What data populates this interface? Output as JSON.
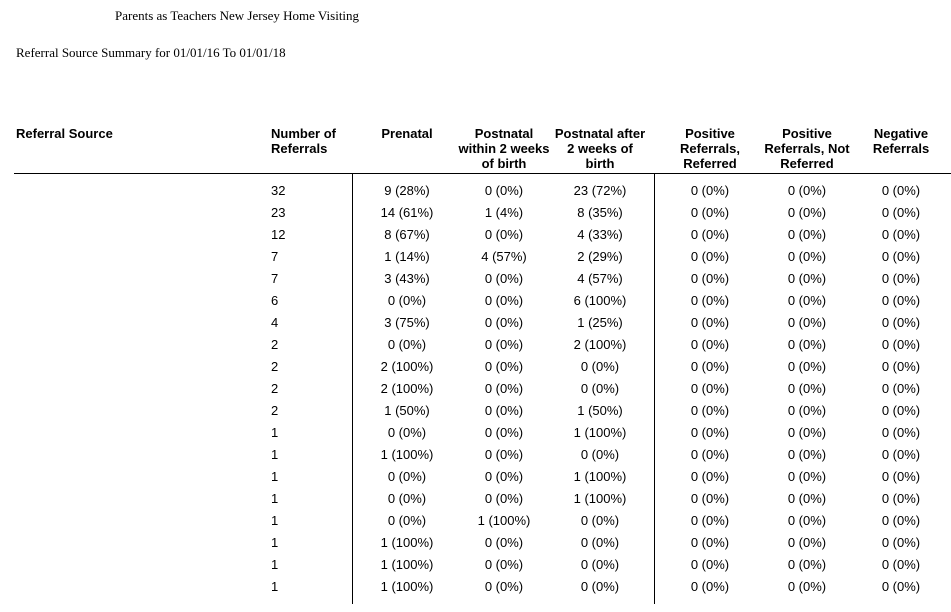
{
  "report": {
    "organization": "Parents as Teachers New Jersey Home Visiting",
    "title": "Referral Source Summary for 01/01/16 To 01/01/18"
  },
  "table": {
    "headers": {
      "source": "Referral Source",
      "count": "Number of Referrals",
      "prenatal": "Prenatal",
      "postnatal_within": "Postnatal within 2 weeks of birth",
      "postnatal_after": "Postnatal after 2 weeks of birth",
      "positive_referred": "Positive Referrals, Referred",
      "positive_not_referred": "Positive Referrals, Not Referred",
      "negative": "Negative Referrals"
    },
    "rows": [
      {
        "source": "",
        "count": "32",
        "prenatal": "9 (28%)",
        "postnatal_within": "0 (0%)",
        "postnatal_after": "23 (72%)",
        "positive_referred": "0 (0%)",
        "positive_not_referred": "0 (0%)",
        "negative": "0 (0%)"
      },
      {
        "source": "",
        "count": "23",
        "prenatal": "14 (61%)",
        "postnatal_within": "1 (4%)",
        "postnatal_after": "8 (35%)",
        "positive_referred": "0 (0%)",
        "positive_not_referred": "0 (0%)",
        "negative": "0 (0%)"
      },
      {
        "source": "",
        "count": "12",
        "prenatal": "8 (67%)",
        "postnatal_within": "0 (0%)",
        "postnatal_after": "4 (33%)",
        "positive_referred": "0 (0%)",
        "positive_not_referred": "0 (0%)",
        "negative": "0 (0%)"
      },
      {
        "source": "",
        "count": "7",
        "prenatal": "1 (14%)",
        "postnatal_within": "4 (57%)",
        "postnatal_after": "2 (29%)",
        "positive_referred": "0 (0%)",
        "positive_not_referred": "0 (0%)",
        "negative": "0 (0%)"
      },
      {
        "source": "",
        "count": "7",
        "prenatal": "3 (43%)",
        "postnatal_within": "0 (0%)",
        "postnatal_after": "4 (57%)",
        "positive_referred": "0 (0%)",
        "positive_not_referred": "0 (0%)",
        "negative": "0 (0%)"
      },
      {
        "source": "",
        "count": "6",
        "prenatal": "0 (0%)",
        "postnatal_within": "0 (0%)",
        "postnatal_after": "6 (100%)",
        "positive_referred": "0 (0%)",
        "positive_not_referred": "0 (0%)",
        "negative": "0 (0%)"
      },
      {
        "source": "",
        "count": "4",
        "prenatal": "3 (75%)",
        "postnatal_within": "0 (0%)",
        "postnatal_after": "1 (25%)",
        "positive_referred": "0 (0%)",
        "positive_not_referred": "0 (0%)",
        "negative": "0 (0%)"
      },
      {
        "source": "",
        "count": "2",
        "prenatal": "0 (0%)",
        "postnatal_within": "0 (0%)",
        "postnatal_after": "2 (100%)",
        "positive_referred": "0 (0%)",
        "positive_not_referred": "0 (0%)",
        "negative": "0 (0%)"
      },
      {
        "source": "",
        "count": "2",
        "prenatal": "2 (100%)",
        "postnatal_within": "0 (0%)",
        "postnatal_after": "0 (0%)",
        "positive_referred": "0 (0%)",
        "positive_not_referred": "0 (0%)",
        "negative": "0 (0%)"
      },
      {
        "source": "",
        "count": "2",
        "prenatal": "2 (100%)",
        "postnatal_within": "0 (0%)",
        "postnatal_after": "0 (0%)",
        "positive_referred": "0 (0%)",
        "positive_not_referred": "0 (0%)",
        "negative": "0 (0%)"
      },
      {
        "source": "",
        "count": "2",
        "prenatal": "1 (50%)",
        "postnatal_within": "0 (0%)",
        "postnatal_after": "1 (50%)",
        "positive_referred": "0 (0%)",
        "positive_not_referred": "0 (0%)",
        "negative": "0 (0%)"
      },
      {
        "source": "",
        "count": "1",
        "prenatal": "0 (0%)",
        "postnatal_within": "0 (0%)",
        "postnatal_after": "1 (100%)",
        "positive_referred": "0 (0%)",
        "positive_not_referred": "0 (0%)",
        "negative": "0 (0%)"
      },
      {
        "source": "",
        "count": "1",
        "prenatal": "1 (100%)",
        "postnatal_within": "0 (0%)",
        "postnatal_after": "0 (0%)",
        "positive_referred": "0 (0%)",
        "positive_not_referred": "0 (0%)",
        "negative": "0 (0%)"
      },
      {
        "source": "",
        "count": "1",
        "prenatal": "0 (0%)",
        "postnatal_within": "0 (0%)",
        "postnatal_after": "1 (100%)",
        "positive_referred": "0 (0%)",
        "positive_not_referred": "0 (0%)",
        "negative": "0 (0%)"
      },
      {
        "source": "",
        "count": "1",
        "prenatal": "0 (0%)",
        "postnatal_within": "0 (0%)",
        "postnatal_after": "1 (100%)",
        "positive_referred": "0 (0%)",
        "positive_not_referred": "0 (0%)",
        "negative": "0 (0%)"
      },
      {
        "source": "",
        "count": "1",
        "prenatal": "0 (0%)",
        "postnatal_within": "1 (100%)",
        "postnatal_after": "0 (0%)",
        "positive_referred": "0 (0%)",
        "positive_not_referred": "0 (0%)",
        "negative": "0 (0%)"
      },
      {
        "source": "",
        "count": "1",
        "prenatal": "1 (100%)",
        "postnatal_within": "0 (0%)",
        "postnatal_after": "0 (0%)",
        "positive_referred": "0 (0%)",
        "positive_not_referred": "0 (0%)",
        "negative": "0 (0%)"
      },
      {
        "source": "",
        "count": "1",
        "prenatal": "1 (100%)",
        "postnatal_within": "0 (0%)",
        "postnatal_after": "0 (0%)",
        "positive_referred": "0 (0%)",
        "positive_not_referred": "0 (0%)",
        "negative": "0 (0%)"
      },
      {
        "source": "",
        "count": "1",
        "prenatal": "1 (100%)",
        "postnatal_within": "0 (0%)",
        "postnatal_after": "0 (0%)",
        "positive_referred": "0 (0%)",
        "positive_not_referred": "0 (0%)",
        "negative": "0 (0%)"
      }
    ]
  }
}
